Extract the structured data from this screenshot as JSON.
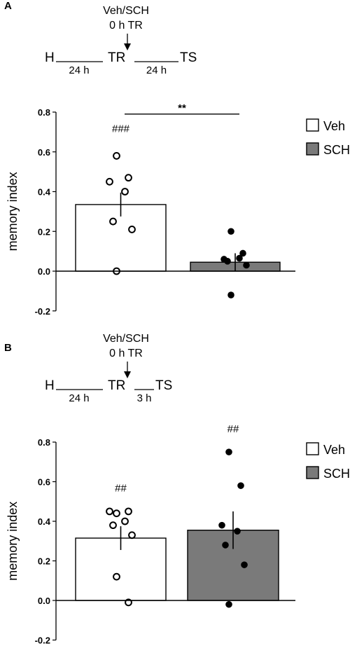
{
  "panels": [
    {
      "letter": "A",
      "protocol": {
        "treatment": "Veh/SCH",
        "time_point": "0 h TR",
        "steps": [
          "H",
          "TR",
          "TS"
        ],
        "intervals": [
          "24 h",
          "24 h"
        ]
      }
    },
    {
      "letter": "B",
      "protocol": {
        "treatment": "Veh/SCH",
        "time_point": "0 h TR",
        "steps": [
          "H",
          "TR",
          "TS"
        ],
        "intervals": [
          "24 h",
          "3 h"
        ]
      }
    }
  ],
  "colors": {
    "veh_fill": "#ffffff",
    "sch_fill": "#7a7a7a",
    "ink": "#000000"
  },
  "chart_data": [
    {
      "type": "bar",
      "panel": "A",
      "categories": [
        "Veh",
        "SCH"
      ],
      "ylabel": "memory index",
      "ylim": [
        -0.2,
        0.8
      ],
      "yticks": [
        "-0.2",
        "0.0",
        "0.2",
        "0.4",
        "0.6",
        "0.8"
      ],
      "legend": [
        "Veh",
        "SCH"
      ],
      "legend_position": "top-right",
      "series": [
        {
          "name": "Veh",
          "mean": 0.335,
          "error": 0.06,
          "points": [
            0.58,
            0.47,
            0.45,
            0.4,
            0.25,
            0.21,
            0.0
          ]
        },
        {
          "name": "SCH",
          "mean": 0.045,
          "error": 0.045,
          "points": [
            0.2,
            0.09,
            0.06,
            0.065,
            0.05,
            0.03,
            -0.12
          ]
        }
      ],
      "annotations": [
        {
          "text": "###",
          "category": "Veh",
          "y": 0.7
        },
        {
          "text": "**",
          "type": "comparison",
          "between": [
            "Veh",
            "SCH"
          ],
          "y": 0.79
        }
      ]
    },
    {
      "type": "bar",
      "panel": "B",
      "categories": [
        "Veh",
        "SCH"
      ],
      "ylabel": "memory index",
      "ylim": [
        -0.2,
        0.8
      ],
      "yticks": [
        "-0.2",
        "0.0",
        "0.2",
        "0.4",
        "0.6",
        "0.8"
      ],
      "legend": [
        "Veh",
        "SCH"
      ],
      "legend_position": "top-right",
      "series": [
        {
          "name": "Veh",
          "mean": 0.315,
          "error": 0.06,
          "points": [
            0.44,
            0.45,
            0.45,
            0.4,
            0.38,
            0.33,
            0.12,
            -0.01
          ]
        },
        {
          "name": "SCH",
          "mean": 0.355,
          "error": 0.095,
          "points": [
            0.75,
            0.58,
            0.38,
            0.35,
            0.28,
            0.18,
            -0.02
          ]
        }
      ],
      "annotations": [
        {
          "text": "##",
          "category": "Veh",
          "y": 0.55
        },
        {
          "text": "##",
          "category": "SCH",
          "y": 0.85
        }
      ]
    }
  ]
}
